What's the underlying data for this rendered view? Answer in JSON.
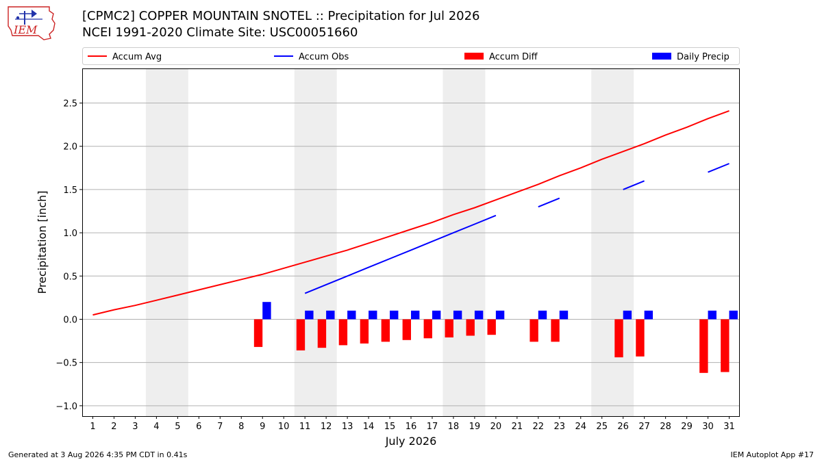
{
  "header": {
    "logo_text": "IEM",
    "title_line1": "[CPMC2] COPPER MOUNTAIN SNOTEL :: Precipitation for Jul 2026",
    "title_line2": "NCEI 1991-2020 Climate Site: USC00051660"
  },
  "footer": {
    "generated": "Generated at 3 Aug 2026 4:35 PM CDT in 0.41s",
    "app": "IEM Autoplot App #17"
  },
  "colors": {
    "avg": "#ff0000",
    "obs": "#0000ff",
    "diff": "#ff0000",
    "daily": "#0000ff",
    "weekend": "#eeeeee",
    "grid": "#b0b0b0"
  },
  "chart_data": {
    "type": "bar",
    "xlabel": "July 2026",
    "ylabel": "Precipitation [inch]",
    "xlim": [
      0.5,
      31.5
    ],
    "ylim": [
      -1.12,
      2.9
    ],
    "yticks": [
      -1.0,
      -0.5,
      0.0,
      0.5,
      1.0,
      1.5,
      2.0,
      2.5
    ],
    "ytick_labels": [
      "−1.0",
      "−0.5",
      "0.0",
      "0.5",
      "1.0",
      "1.5",
      "2.0",
      "2.5"
    ],
    "days": [
      1,
      2,
      3,
      4,
      5,
      6,
      7,
      8,
      9,
      10,
      11,
      12,
      13,
      14,
      15,
      16,
      17,
      18,
      19,
      20,
      21,
      22,
      23,
      24,
      25,
      26,
      27,
      28,
      29,
      30,
      31
    ],
    "weekend_spans": [
      [
        3.5,
        5.5
      ],
      [
        10.5,
        12.5
      ],
      [
        17.5,
        19.5
      ],
      [
        24.5,
        26.5
      ]
    ],
    "grid": "horizontal",
    "legend_position": "top",
    "legend": [
      {
        "label": "Accum Avg",
        "kind": "line",
        "color": "#ff0000"
      },
      {
        "label": "Accum Obs",
        "kind": "line",
        "color": "#0000ff"
      },
      {
        "label": "Accum Diff",
        "kind": "bar",
        "color": "#ff0000"
      },
      {
        "label": "Daily Precip",
        "kind": "bar",
        "color": "#0000ff"
      }
    ],
    "series": [
      {
        "name": "Accum Avg",
        "type": "line",
        "values": [
          0.05,
          0.11,
          0.16,
          0.22,
          0.28,
          0.34,
          0.4,
          0.46,
          0.52,
          0.59,
          0.66,
          0.73,
          0.8,
          0.88,
          0.96,
          1.04,
          1.12,
          1.21,
          1.29,
          1.38,
          1.47,
          1.56,
          1.66,
          1.75,
          1.85,
          1.94,
          2.03,
          2.13,
          2.22,
          2.32,
          2.41
        ]
      },
      {
        "name": "Accum Obs",
        "type": "line",
        "values": [
          null,
          null,
          null,
          null,
          null,
          null,
          null,
          null,
          null,
          null,
          0.3,
          0.4,
          0.5,
          0.6,
          0.7,
          0.8,
          0.9,
          1.0,
          1.1,
          1.2,
          null,
          1.3,
          1.4,
          null,
          null,
          1.5,
          1.6,
          null,
          null,
          1.7,
          1.8
        ]
      },
      {
        "name": "Accum Diff",
        "type": "bar",
        "values": [
          null,
          null,
          null,
          null,
          null,
          null,
          null,
          null,
          -0.32,
          null,
          -0.36,
          -0.33,
          -0.3,
          -0.28,
          -0.26,
          -0.24,
          -0.22,
          -0.21,
          -0.19,
          -0.18,
          null,
          -0.26,
          -0.26,
          null,
          null,
          -0.44,
          -0.43,
          null,
          null,
          -0.62,
          -0.61
        ]
      },
      {
        "name": "Daily Precip",
        "type": "bar",
        "values": [
          null,
          null,
          null,
          null,
          null,
          null,
          null,
          null,
          0.2,
          null,
          0.1,
          0.1,
          0.1,
          0.1,
          0.1,
          0.1,
          0.1,
          0.1,
          0.1,
          0.1,
          null,
          0.1,
          0.1,
          null,
          null,
          0.1,
          0.1,
          null,
          null,
          0.1,
          0.1
        ]
      }
    ]
  }
}
